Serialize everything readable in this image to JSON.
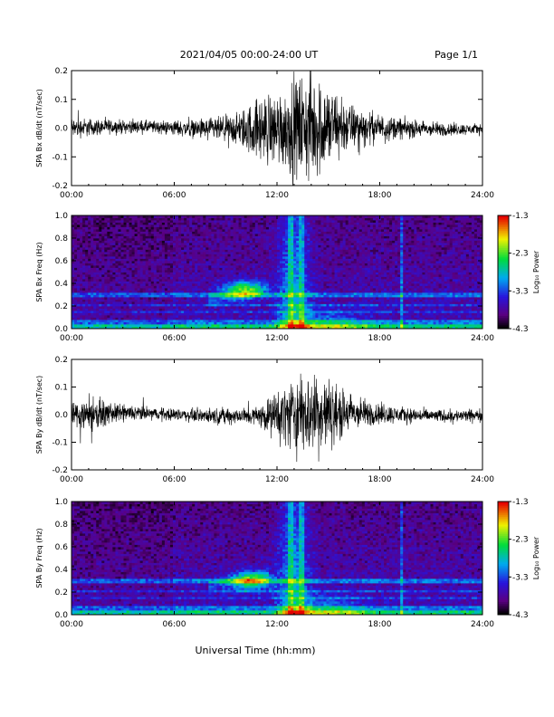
{
  "header": {
    "title": "2021/04/05  00:00-24:00 UT",
    "page": "Page 1/1"
  },
  "footer": {
    "xlabel": "Universal Time (hh:mm)"
  },
  "colorbar": {
    "label": "Log₁₀ Power",
    "ticks": [
      "-1.3",
      "-2.3",
      "-3.3",
      "-4.3"
    ],
    "range": [
      -4.3,
      -1.3
    ]
  },
  "chart_data": [
    {
      "type": "line",
      "id": "bx-wave",
      "ylabel": "SPA Bx dB/dt (nT/sec)",
      "ylim": [
        -0.2,
        0.2
      ],
      "yticks": [
        "0.2",
        "0.1",
        "0.0",
        "-0.1",
        "-0.2"
      ],
      "xlim": [
        "00:00",
        "24:00"
      ],
      "xticks": [
        "00:00",
        "06:00",
        "12:00",
        "18:00",
        "24:00"
      ],
      "envelope": {
        "hours": [
          0,
          1,
          2,
          3,
          4,
          5,
          6,
          7,
          8,
          9,
          10,
          11,
          12,
          13,
          14,
          15,
          16,
          17,
          18,
          19,
          20,
          21,
          22,
          23,
          24
        ],
        "amplitude": [
          0.05,
          0.04,
          0.035,
          0.03,
          0.03,
          0.03,
          0.035,
          0.04,
          0.05,
          0.06,
          0.09,
          0.15,
          0.17,
          0.22,
          0.25,
          0.2,
          0.12,
          0.08,
          0.06,
          0.05,
          0.04,
          0.035,
          0.03,
          0.025,
          0.025
        ]
      }
    },
    {
      "type": "heatmap",
      "id": "bx-spec",
      "ylabel": "SPA Bx Freq (Hz)",
      "ylim": [
        0.0,
        1.0
      ],
      "yticks": [
        "1.0",
        "0.8",
        "0.6",
        "0.4",
        "0.2",
        "0.0"
      ],
      "xlim": [
        "00:00",
        "24:00"
      ],
      "xticks": [
        "00:00",
        "06:00",
        "12:00",
        "18:00",
        "24:00"
      ],
      "zlim": [
        -4.3,
        -1.3
      ]
    },
    {
      "type": "line",
      "id": "by-wave",
      "ylabel": "SPA By dB/dt (nT/sec)",
      "ylim": [
        -0.2,
        0.2
      ],
      "yticks": [
        "0.2",
        "0.1",
        "0.0",
        "-0.1",
        "-0.2"
      ],
      "xlim": [
        "00:00",
        "24:00"
      ],
      "xticks": [
        "00:00",
        "06:00",
        "12:00",
        "18:00",
        "24:00"
      ],
      "envelope": {
        "hours": [
          0,
          1,
          2,
          3,
          4,
          5,
          6,
          7,
          8,
          9,
          10,
          11,
          12,
          13,
          14,
          15,
          16,
          17,
          18,
          19,
          20,
          21,
          22,
          23,
          24
        ],
        "amplitude": [
          0.06,
          0.09,
          0.05,
          0.04,
          0.035,
          0.03,
          0.03,
          0.03,
          0.035,
          0.04,
          0.04,
          0.045,
          0.12,
          0.18,
          0.2,
          0.17,
          0.1,
          0.07,
          0.05,
          0.04,
          0.035,
          0.03,
          0.03,
          0.03,
          0.03
        ]
      }
    },
    {
      "type": "heatmap",
      "id": "by-spec",
      "ylabel": "SPA By Freq (Hz)",
      "ylim": [
        0.0,
        1.0
      ],
      "yticks": [
        "1.0",
        "0.8",
        "0.6",
        "0.4",
        "0.2",
        "0.0"
      ],
      "xlim": [
        "00:00",
        "24:00"
      ],
      "xticks": [
        "00:00",
        "06:00",
        "12:00",
        "18:00",
        "24:00"
      ],
      "zlim": [
        -4.3,
        -1.3
      ]
    }
  ]
}
